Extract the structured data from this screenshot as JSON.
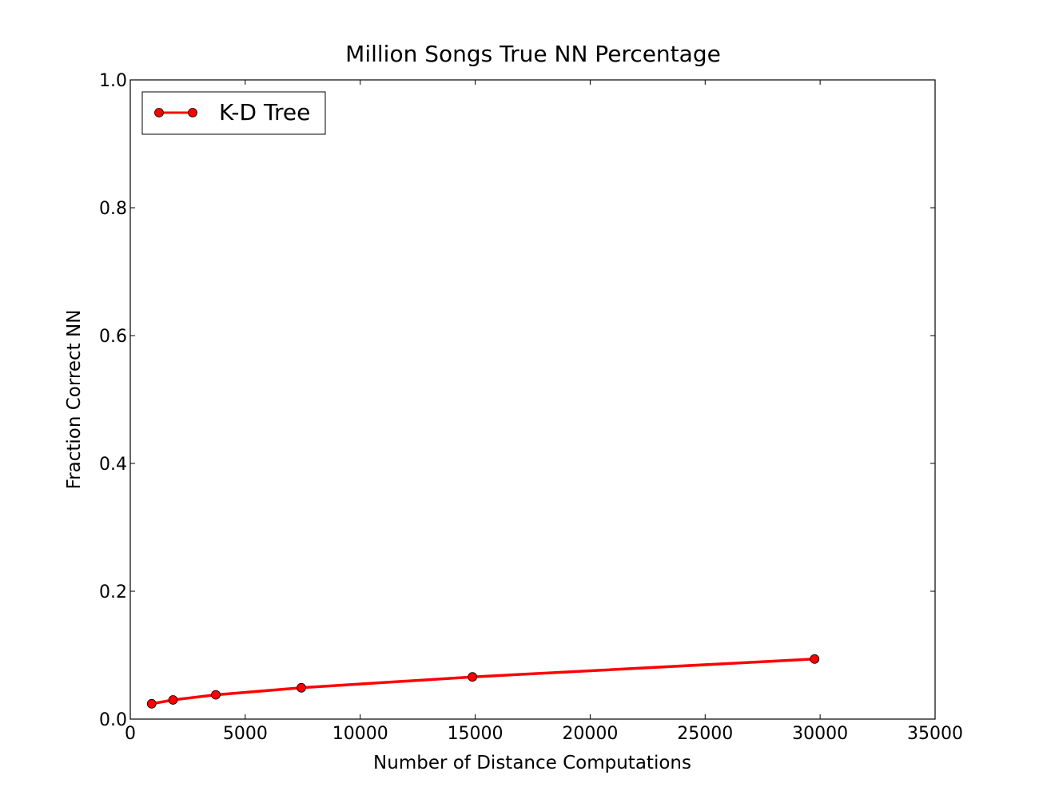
{
  "chart_data": {
    "type": "line",
    "title": "Million Songs True NN Percentage",
    "xlabel": "Number of Distance Computations",
    "ylabel": "Fraction Correct NN",
    "xlim": [
      0,
      35000
    ],
    "ylim": [
      0.0,
      1.0
    ],
    "x_ticks": [
      "0",
      "5000",
      "10000",
      "15000",
      "20000",
      "25000",
      "30000",
      "35000"
    ],
    "y_ticks": [
      "0.0",
      "0.2",
      "0.4",
      "0.6",
      "0.8",
      "1.0"
    ],
    "grid": false,
    "legend_position": "top-left",
    "series": [
      {
        "name": "K-D Tree",
        "color": "#ff0000",
        "marker": "circle",
        "x": [
          930,
          1860,
          3720,
          7440,
          14880,
          29760
        ],
        "y": [
          0.024,
          0.03,
          0.038,
          0.049,
          0.066,
          0.094
        ]
      }
    ]
  }
}
